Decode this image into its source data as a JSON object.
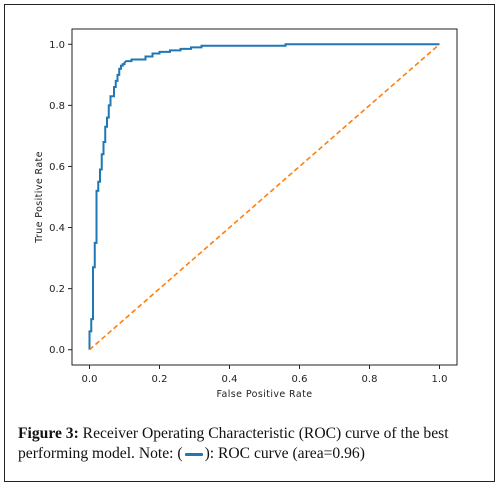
{
  "chart_data": {
    "type": "line",
    "xlabel": "False Positive Rate",
    "ylabel": "True Positive Rate",
    "xlim": [
      -0.05,
      1.05
    ],
    "ylim": [
      -0.05,
      1.05
    ],
    "xticks": [
      "0.0",
      "0.2",
      "0.4",
      "0.6",
      "0.8",
      "1.0"
    ],
    "yticks": [
      "0.0",
      "0.2",
      "0.4",
      "0.6",
      "0.8",
      "1.0"
    ],
    "grid": false,
    "series": [
      {
        "color": "#1f77b4",
        "style": "solid",
        "x": [
          0.0,
          0.0,
          0.005,
          0.005,
          0.01,
          0.01,
          0.015,
          0.015,
          0.02,
          0.02,
          0.025,
          0.025,
          0.03,
          0.03,
          0.035,
          0.035,
          0.04,
          0.04,
          0.045,
          0.045,
          0.05,
          0.05,
          0.055,
          0.055,
          0.06,
          0.06,
          0.07,
          0.07,
          0.075,
          0.075,
          0.08,
          0.08,
          0.085,
          0.085,
          0.09,
          0.09,
          0.095,
          0.095,
          0.1,
          0.1,
          0.105,
          0.12,
          0.12,
          0.16,
          0.16,
          0.18,
          0.18,
          0.2,
          0.2,
          0.23,
          0.23,
          0.26,
          0.26,
          0.29,
          0.29,
          0.32,
          0.32,
          0.56,
          0.56,
          1.0
        ],
        "y": [
          0.0,
          0.06,
          0.06,
          0.1,
          0.1,
          0.27,
          0.27,
          0.35,
          0.35,
          0.52,
          0.52,
          0.55,
          0.55,
          0.59,
          0.59,
          0.64,
          0.64,
          0.68,
          0.68,
          0.73,
          0.73,
          0.76,
          0.76,
          0.8,
          0.8,
          0.83,
          0.83,
          0.86,
          0.86,
          0.88,
          0.88,
          0.9,
          0.9,
          0.92,
          0.92,
          0.93,
          0.93,
          0.935,
          0.935,
          0.94,
          0.945,
          0.945,
          0.95,
          0.95,
          0.96,
          0.96,
          0.97,
          0.97,
          0.975,
          0.975,
          0.98,
          0.98,
          0.985,
          0.985,
          0.99,
          0.99,
          0.995,
          0.995,
          1.0,
          1.0
        ]
      },
      {
        "color": "#ff7f0e",
        "style": "dashed",
        "x": [
          0.0,
          1.0
        ],
        "y": [
          0.0,
          1.0
        ]
      }
    ]
  },
  "caption": {
    "label": "Figure 3:",
    "text_before": " Receiver Operating Characteristic (ROC) curve of the best performing model. Note: (",
    "text_after": "): ROC curve (area=0.96)"
  }
}
